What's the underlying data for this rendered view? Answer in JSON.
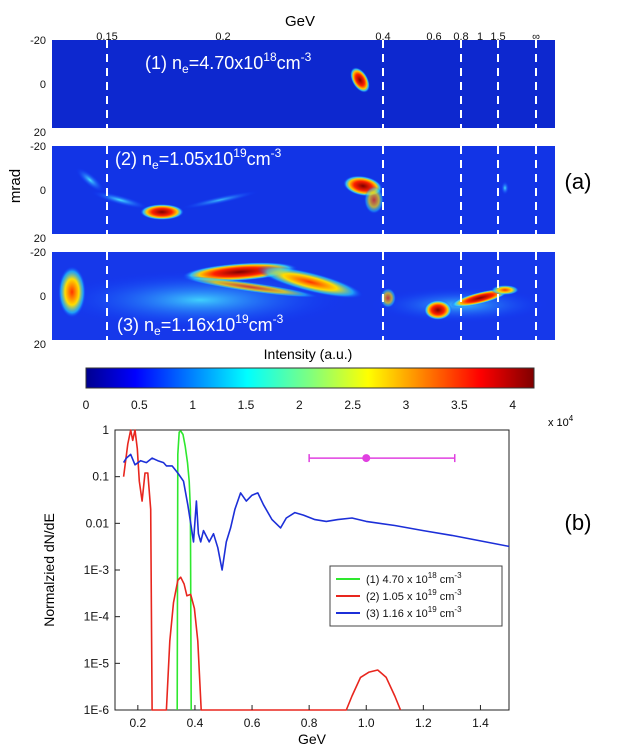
{
  "panel_labels": {
    "a": "(a)",
    "b": "(b)"
  },
  "top": {
    "energy_axis_label": "GeV",
    "energy_ticks": [
      "0.15",
      "0.2",
      "0.4",
      "0.6",
      "0.8",
      "1",
      "1.5",
      "∞"
    ],
    "angle_axis_label": "mrad",
    "angle_ticks": [
      "-20",
      "0",
      "20"
    ],
    "spectra": [
      {
        "label": "(1) n",
        "sub": "e",
        "mid": "=4.70x10",
        "sup": "18",
        "unit": "cm",
        "unit_exp": "-3"
      },
      {
        "label": "(2) n",
        "sub": "e",
        "mid": "=1.05x10",
        "sup": "19",
        "unit": "cm",
        "unit_exp": "-3"
      },
      {
        "label": "(3) n",
        "sub": "e",
        "mid": "=1.16x10",
        "sup": "19",
        "unit": "cm",
        "unit_exp": "-3"
      }
    ]
  },
  "colorbar": {
    "title": "Intensity (a.u.)",
    "ticks": [
      "0",
      "0.5",
      "1",
      "1.5",
      "2",
      "2.5",
      "3",
      "3.5",
      "4"
    ],
    "scale_text": "x 10",
    "scale_exp": "4"
  },
  "chart_data": {
    "type": "line",
    "xlabel": "GeV",
    "ylabel": "Normalzied dN/dE",
    "xlim": [
      0.12,
      1.5
    ],
    "ylim": [
      1e-06,
      1
    ],
    "yscale": "log",
    "x_ticks": [
      "0.2",
      "0.4",
      "0.6",
      "0.8",
      "1.0",
      "1.2",
      "1.4"
    ],
    "y_ticks": [
      "1E-6",
      "1E-5",
      "1E-4",
      "1E-3",
      "0.01",
      "0.1",
      "1"
    ],
    "legend_position": "lower-right",
    "series": [
      {
        "name": "(1) 4.70 x 10",
        "exp": "18",
        "unit": " cm",
        "unit_exp": "-3",
        "color": "#2ee82e",
        "points": [
          [
            0.338,
            1e-06
          ],
          [
            0.34,
            0.3
          ],
          [
            0.345,
            0.9
          ],
          [
            0.35,
            0.95
          ],
          [
            0.358,
            0.8
          ],
          [
            0.366,
            0.45
          ],
          [
            0.374,
            0.2
          ],
          [
            0.38,
            0.08
          ],
          [
            0.384,
            0.02
          ],
          [
            0.387,
            1e-06
          ]
        ]
      },
      {
        "name": "(2) 1.05 x 10",
        "exp": "19",
        "unit": " cm",
        "unit_exp": "-3",
        "color": "#e8261e",
        "points": [
          [
            0.15,
            0.1
          ],
          [
            0.165,
            0.5
          ],
          [
            0.175,
            1.0
          ],
          [
            0.182,
            0.6
          ],
          [
            0.19,
            1.0
          ],
          [
            0.198,
            0.4
          ],
          [
            0.205,
            0.08
          ],
          [
            0.215,
            0.03
          ],
          [
            0.225,
            0.12
          ],
          [
            0.235,
            0.12
          ],
          [
            0.245,
            0.02
          ],
          [
            0.25,
            1e-06
          ],
          [
            0.3,
            1e-06
          ],
          [
            0.312,
            3e-05
          ],
          [
            0.325,
            0.0002
          ],
          [
            0.34,
            0.0006
          ],
          [
            0.35,
            0.0007
          ],
          [
            0.362,
            0.0005
          ],
          [
            0.372,
            0.00028
          ],
          [
            0.385,
            0.0003
          ],
          [
            0.398,
            0.00015
          ],
          [
            0.41,
            3e-05
          ],
          [
            0.422,
            1e-06
          ],
          [
            0.93,
            1e-06
          ],
          [
            0.95,
            2e-06
          ],
          [
            0.98,
            5e-06
          ],
          [
            1.01,
            6.5e-06
          ],
          [
            1.04,
            7.2e-06
          ],
          [
            1.07,
            5e-06
          ],
          [
            1.1,
            2e-06
          ],
          [
            1.12,
            1e-06
          ]
        ]
      },
      {
        "name": "(3) 1.16 x 10",
        "exp": "19",
        "unit": " cm",
        "unit_exp": "-3",
        "color": "#1c2fd8",
        "points": [
          [
            0.15,
            0.2
          ],
          [
            0.16,
            0.25
          ],
          [
            0.175,
            0.3
          ],
          [
            0.19,
            0.18
          ],
          [
            0.21,
            0.22
          ],
          [
            0.23,
            0.2
          ],
          [
            0.25,
            0.25
          ],
          [
            0.27,
            0.22
          ],
          [
            0.29,
            0.2
          ],
          [
            0.3,
            0.17
          ],
          [
            0.32,
            0.17
          ],
          [
            0.34,
            0.12
          ],
          [
            0.36,
            0.08
          ],
          [
            0.375,
            0.025
          ],
          [
            0.385,
            0.01
          ],
          [
            0.395,
            0.004
          ],
          [
            0.405,
            0.03
          ],
          [
            0.412,
            0.006
          ],
          [
            0.42,
            0.004
          ],
          [
            0.43,
            0.007
          ],
          [
            0.45,
            0.004
          ],
          [
            0.465,
            0.006
          ],
          [
            0.48,
            0.003
          ],
          [
            0.495,
            0.001
          ],
          [
            0.51,
            0.004
          ],
          [
            0.525,
            0.008
          ],
          [
            0.54,
            0.02
          ],
          [
            0.56,
            0.045
          ],
          [
            0.58,
            0.03
          ],
          [
            0.6,
            0.04
          ],
          [
            0.62,
            0.045
          ],
          [
            0.64,
            0.025
          ],
          [
            0.67,
            0.012
          ],
          [
            0.7,
            0.008
          ],
          [
            0.72,
            0.013
          ],
          [
            0.75,
            0.017
          ],
          [
            0.78,
            0.015
          ],
          [
            0.82,
            0.012
          ],
          [
            0.86,
            0.011
          ],
          [
            0.9,
            0.012
          ],
          [
            0.95,
            0.013
          ],
          [
            1.0,
            0.011
          ],
          [
            1.1,
            0.009
          ],
          [
            1.2,
            0.007
          ],
          [
            1.3,
            0.0055
          ],
          [
            1.4,
            0.0042
          ],
          [
            1.5,
            0.0032
          ]
        ]
      }
    ],
    "errorbar": {
      "x": 1.0,
      "y": 0.25,
      "x_low": 0.8,
      "x_high": 1.31,
      "color": "#e040e0"
    }
  }
}
